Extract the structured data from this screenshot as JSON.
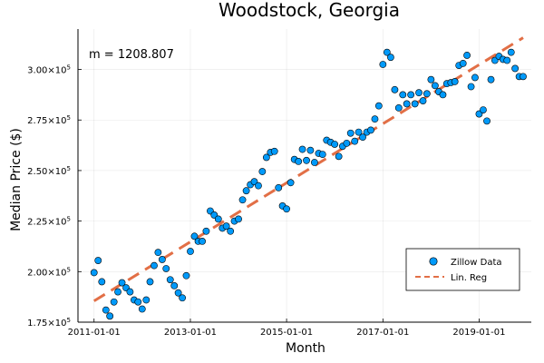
{
  "chart_data": {
    "type": "scatter",
    "title": "Woodstock, Georgia",
    "xlabel": "Month",
    "ylabel": "Median Price ($)",
    "annotation": "m = 1208.807",
    "xlim": [
      "2010-09-01",
      "2020-02-01"
    ],
    "ylim": [
      175000,
      320000
    ],
    "grid": true,
    "legend_placement": "bottom-right",
    "x_ticks": [
      {
        "date": "2011-01-01",
        "label": "2011-01-01"
      },
      {
        "date": "2013-01-01",
        "label": "2013-01-01"
      },
      {
        "date": "2015-01-01",
        "label": "2015-01-01"
      },
      {
        "date": "2017-01-01",
        "label": "2017-01-01"
      },
      {
        "date": "2019-01-01",
        "label": "2019-01-01"
      }
    ],
    "y_ticks": [
      {
        "value": 175000,
        "base": "1.75×10",
        "exp": "5"
      },
      {
        "value": 200000,
        "base": "2.00×10",
        "exp": "5"
      },
      {
        "value": 225000,
        "base": "2.25×10",
        "exp": "5"
      },
      {
        "value": 250000,
        "base": "2.50×10",
        "exp": "5"
      },
      {
        "value": 275000,
        "base": "2.75×10",
        "exp": "5"
      },
      {
        "value": 300000,
        "base": "3.00×10",
        "exp": "5"
      }
    ],
    "series": [
      {
        "name": "Zillow Data",
        "kind": "scatter",
        "color": "#009AFA",
        "points": [
          [
            "2011-01-01",
            199500
          ],
          [
            "2011-02-01",
            205500
          ],
          [
            "2011-03-01",
            195000
          ],
          [
            "2011-04-01",
            181000
          ],
          [
            "2011-05-01",
            178000
          ],
          [
            "2011-06-01",
            185000
          ],
          [
            "2011-07-01",
            190000
          ],
          [
            "2011-08-01",
            194500
          ],
          [
            "2011-09-01",
            192000
          ],
          [
            "2011-10-01",
            190000
          ],
          [
            "2011-11-01",
            186000
          ],
          [
            "2011-12-01",
            185000
          ],
          [
            "2012-01-01",
            181500
          ],
          [
            "2012-02-01",
            186000
          ],
          [
            "2012-03-01",
            195000
          ],
          [
            "2012-04-01",
            203000
          ],
          [
            "2012-05-01",
            209500
          ],
          [
            "2012-06-01",
            206000
          ],
          [
            "2012-07-01",
            201500
          ],
          [
            "2012-08-01",
            196000
          ],
          [
            "2012-09-01",
            193000
          ],
          [
            "2012-10-01",
            189500
          ],
          [
            "2012-11-01",
            187000
          ],
          [
            "2012-12-01",
            198000
          ],
          [
            "2013-01-01",
            210000
          ],
          [
            "2013-02-01",
            217500
          ],
          [
            "2013-03-01",
            215000
          ],
          [
            "2013-04-01",
            215000
          ],
          [
            "2013-05-01",
            220000
          ],
          [
            "2013-06-01",
            230000
          ],
          [
            "2013-07-01",
            228000
          ],
          [
            "2013-08-01",
            226000
          ],
          [
            "2013-09-01",
            221500
          ],
          [
            "2013-10-01",
            222500
          ],
          [
            "2013-11-01",
            220000
          ],
          [
            "2013-12-01",
            225000
          ],
          [
            "2014-01-01",
            226000
          ],
          [
            "2014-02-01",
            235500
          ],
          [
            "2014-03-01",
            240000
          ],
          [
            "2014-04-01",
            243000
          ],
          [
            "2014-05-01",
            244500
          ],
          [
            "2014-06-01",
            242500
          ],
          [
            "2014-07-01",
            249500
          ],
          [
            "2014-08-01",
            256500
          ],
          [
            "2014-09-01",
            259000
          ],
          [
            "2014-10-01",
            259500
          ],
          [
            "2014-11-01",
            241500
          ],
          [
            "2014-12-01",
            232500
          ],
          [
            "2015-01-01",
            231000
          ],
          [
            "2015-02-01",
            244000
          ],
          [
            "2015-03-01",
            255500
          ],
          [
            "2015-04-01",
            254500
          ],
          [
            "2015-05-01",
            260500
          ],
          [
            "2015-06-01",
            255000
          ],
          [
            "2015-07-01",
            260000
          ],
          [
            "2015-08-01",
            254000
          ],
          [
            "2015-09-01",
            258500
          ],
          [
            "2015-10-01",
            258000
          ],
          [
            "2015-11-01",
            265000
          ],
          [
            "2015-12-01",
            264000
          ],
          [
            "2016-01-01",
            263000
          ],
          [
            "2016-02-01",
            257000
          ],
          [
            "2016-03-01",
            262000
          ],
          [
            "2016-04-01",
            263500
          ],
          [
            "2016-05-01",
            268500
          ],
          [
            "2016-06-01",
            264500
          ],
          [
            "2016-07-01",
            269000
          ],
          [
            "2016-08-01",
            266500
          ],
          [
            "2016-09-01",
            269000
          ],
          [
            "2016-10-01",
            270000
          ],
          [
            "2016-11-01",
            275500
          ],
          [
            "2016-12-01",
            282000
          ],
          [
            "2017-01-01",
            302500
          ],
          [
            "2017-02-01",
            308500
          ],
          [
            "2017-03-01",
            306000
          ],
          [
            "2017-04-01",
            290000
          ],
          [
            "2017-05-01",
            281000
          ],
          [
            "2017-06-01",
            287500
          ],
          [
            "2017-07-01",
            283000
          ],
          [
            "2017-08-01",
            287500
          ],
          [
            "2017-09-01",
            283000
          ],
          [
            "2017-10-01",
            288500
          ],
          [
            "2017-11-01",
            284500
          ],
          [
            "2017-12-01",
            288000
          ],
          [
            "2018-01-01",
            295000
          ],
          [
            "2018-02-01",
            292000
          ],
          [
            "2018-03-01",
            289000
          ],
          [
            "2018-04-01",
            287500
          ],
          [
            "2018-05-01",
            293000
          ],
          [
            "2018-06-01",
            293500
          ],
          [
            "2018-07-01",
            294000
          ],
          [
            "2018-08-01",
            302000
          ],
          [
            "2018-09-01",
            303000
          ],
          [
            "2018-10-01",
            307000
          ],
          [
            "2018-11-01",
            291500
          ],
          [
            "2018-12-01",
            296000
          ],
          [
            "2019-01-01",
            278000
          ],
          [
            "2019-02-01",
            280000
          ],
          [
            "2019-03-01",
            274500
          ],
          [
            "2019-04-01",
            295000
          ],
          [
            "2019-05-01",
            304500
          ],
          [
            "2019-06-01",
            306500
          ],
          [
            "2019-07-01",
            305000
          ],
          [
            "2019-08-01",
            304500
          ],
          [
            "2019-09-01",
            308500
          ],
          [
            "2019-10-01",
            300500
          ],
          [
            "2019-11-01",
            296500
          ],
          [
            "2019-12-01",
            296500
          ]
        ]
      },
      {
        "name": "Lin. Reg",
        "kind": "line",
        "style": "dashed",
        "color": "#E26F46",
        "points": [
          [
            "2011-01-01",
            185500
          ],
          [
            "2019-12-01",
            315700
          ]
        ]
      }
    ]
  }
}
